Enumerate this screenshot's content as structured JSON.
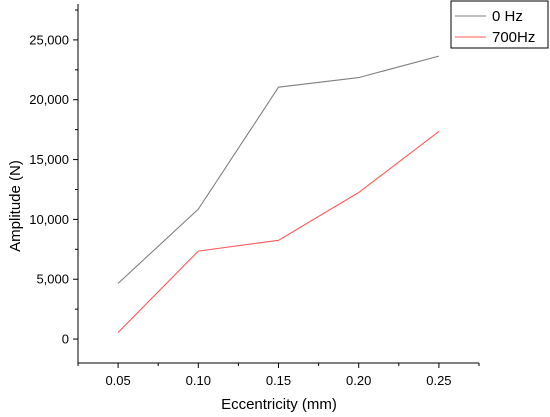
{
  "chart_data": {
    "type": "line",
    "x": [
      0.05,
      0.1,
      0.15,
      0.2,
      0.25
    ],
    "x_tick_labels": [
      "0.05",
      "0.10",
      "0.15",
      "0.20",
      "0.25"
    ],
    "y_tick_values": [
      0,
      5000,
      10000,
      15000,
      20000,
      25000
    ],
    "y_tick_labels": [
      "0",
      "5,000",
      "10,000",
      "15,000",
      "20,000",
      "25,000"
    ],
    "xlabel": "Eccentricity (mm)",
    "ylabel": "Amplitude (N)",
    "xlim": [
      0.025,
      0.275
    ],
    "ylim": [
      -2000,
      28000
    ],
    "grid": false,
    "legend_position": "top-right",
    "series": [
      {
        "name": "0 Hz",
        "color": "#808080",
        "values": [
          4650,
          10850,
          21050,
          21850,
          23650
        ]
      },
      {
        "name": "700Hz",
        "color": "#ff5a5a",
        "values": [
          550,
          7350,
          8250,
          12250,
          17350
        ]
      }
    ]
  }
}
